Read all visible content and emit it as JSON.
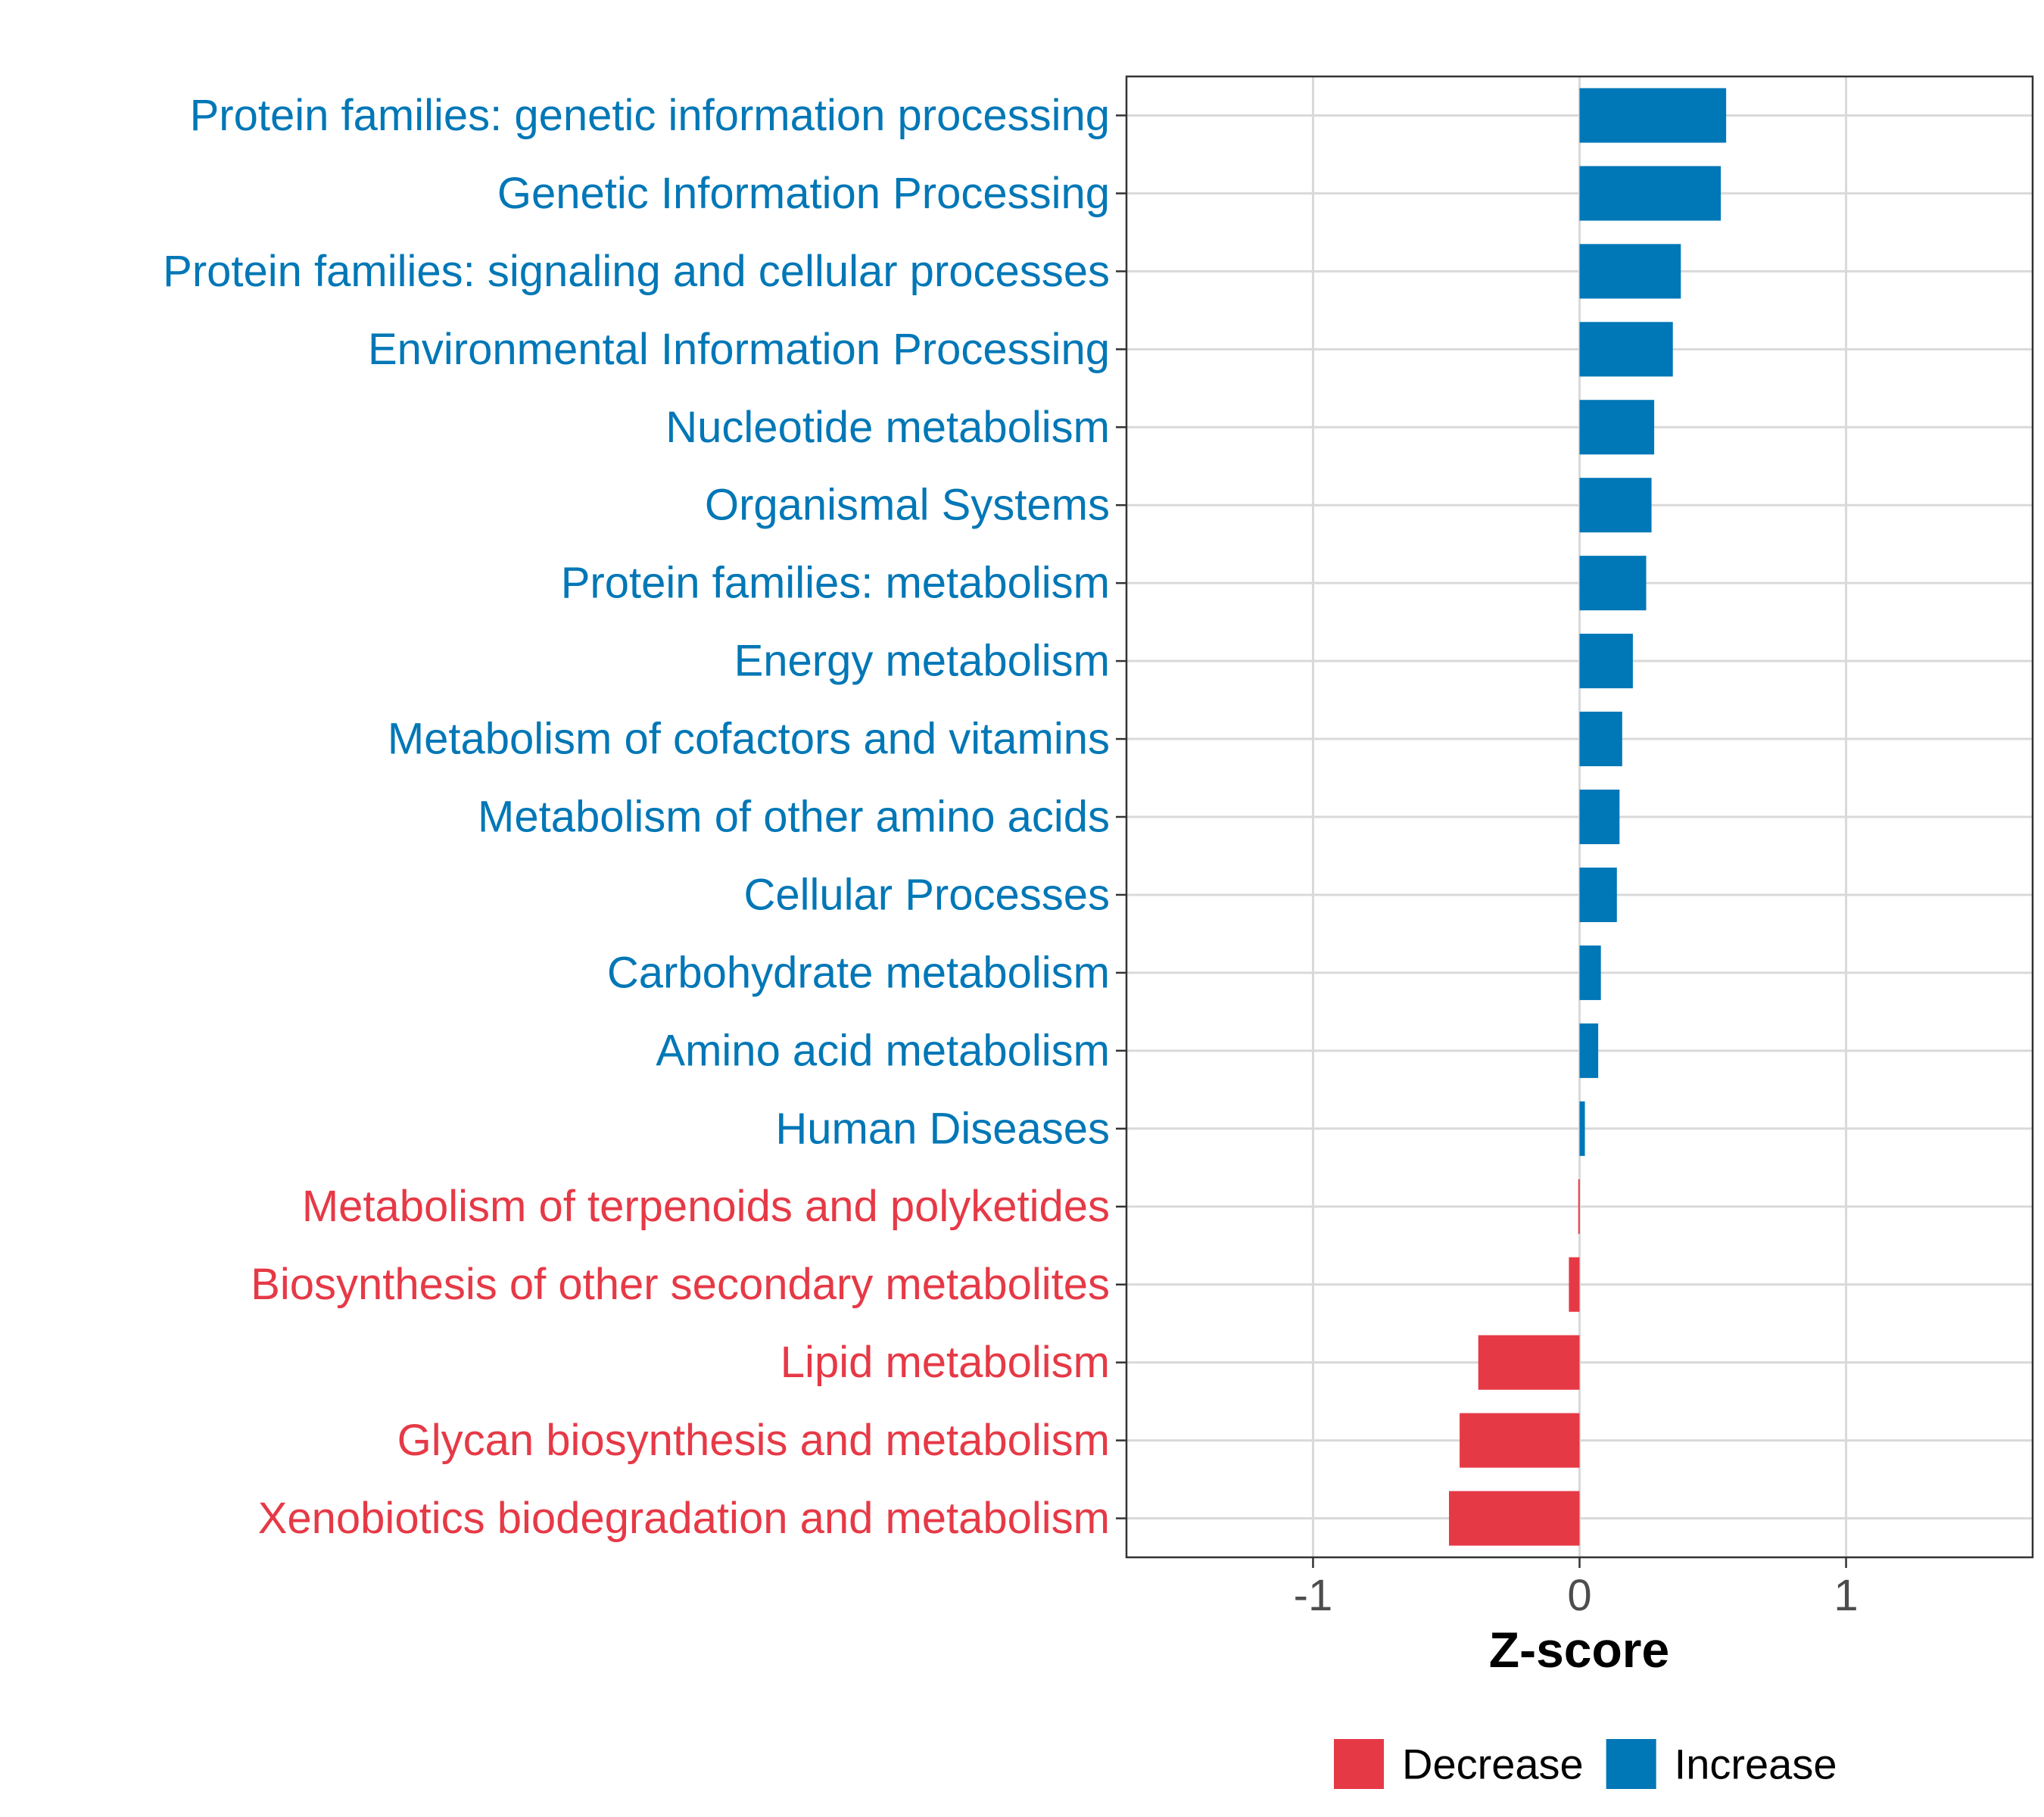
{
  "chart_data": {
    "type": "bar",
    "orientation": "horizontal",
    "title": "",
    "xlabel": "Z-score",
    "ylabel": "",
    "xlim": [
      -1.7,
      1.7
    ],
    "xticks": [
      -1,
      0,
      1
    ],
    "xtick_labels": [
      "-1",
      "0",
      "1"
    ],
    "grid": true,
    "legend_position": "bottom",
    "colors": {
      "Decrease": "#e63946",
      "Increase": "#0077b6"
    },
    "legend": [
      {
        "label": "Decrease",
        "color": "#e63946"
      },
      {
        "label": "Increase",
        "color": "#0077b6"
      }
    ],
    "categories": [
      "Protein families: genetic information processing",
      "Genetic Information Processing",
      "Protein families: signaling and cellular processes",
      "Environmental Information Processing",
      "Nucleotide metabolism",
      "Organismal Systems",
      "Protein families: metabolism",
      "Energy metabolism",
      "Metabolism of cofactors and vitamins",
      "Metabolism of other amino acids",
      "Cellular Processes",
      "Carbohydrate metabolism",
      "Amino acid metabolism",
      "Human Diseases",
      "Metabolism of terpenoids and polyketides",
      "Biosynthesis of other secondary metabolites",
      "Lipid metabolism",
      "Glycan biosynthesis and metabolism",
      "Xenobiotics biodegradation and metabolism"
    ],
    "values": [
      0.55,
      0.53,
      0.38,
      0.35,
      0.28,
      0.27,
      0.25,
      0.2,
      0.16,
      0.15,
      0.14,
      0.08,
      0.07,
      0.02,
      -0.005,
      -0.04,
      -0.38,
      -0.45,
      -0.49
    ],
    "groups": [
      "Increase",
      "Increase",
      "Increase",
      "Increase",
      "Increase",
      "Increase",
      "Increase",
      "Increase",
      "Increase",
      "Increase",
      "Increase",
      "Increase",
      "Increase",
      "Increase",
      "Decrease",
      "Decrease",
      "Decrease",
      "Decrease",
      "Decrease"
    ]
  }
}
